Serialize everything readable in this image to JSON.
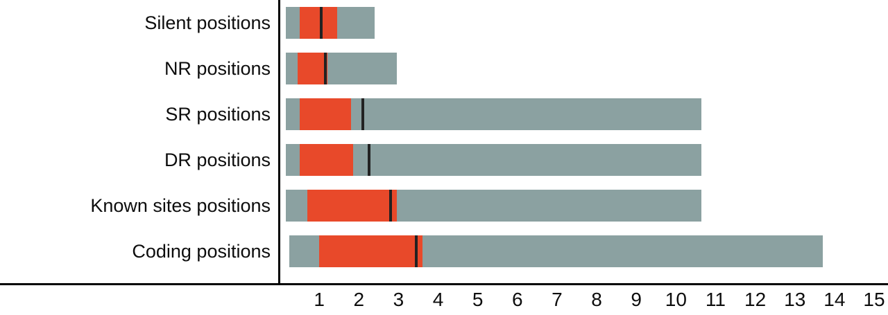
{
  "chart_data": {
    "type": "bar",
    "variant": "horizontal-range-boxplot",
    "title": "",
    "xlabel": "",
    "ylabel": "",
    "xlim": [
      0,
      15
    ],
    "x_ticks": [
      1,
      2,
      3,
      4,
      5,
      6,
      7,
      8,
      9,
      10,
      11,
      12,
      13,
      14,
      15
    ],
    "legend": "none",
    "grid": false,
    "colors": {
      "range": "#8ba1a1",
      "box": "#e8492a",
      "marker": "#222222",
      "axis": "#000000",
      "text": "#0d0d0d"
    },
    "categories": [
      "Silent positions",
      "NR positions",
      "SR positions",
      "DR positions",
      "Known sites positions",
      "Coding positions"
    ],
    "rows": [
      {
        "label": "Silent positions",
        "range": [
          0.15,
          2.4
        ],
        "box": [
          0.5,
          1.45
        ],
        "marker": 1.05
      },
      {
        "label": "NR positions",
        "range": [
          0.15,
          2.95
        ],
        "box": [
          0.45,
          1.2
        ],
        "marker": 1.15
      },
      {
        "label": "SR positions",
        "range": [
          0.15,
          10.65
        ],
        "box": [
          0.5,
          1.8
        ],
        "marker": 2.1
      },
      {
        "label": "DR positions",
        "range": [
          0.15,
          10.65
        ],
        "box": [
          0.5,
          1.85
        ],
        "marker": 2.25
      },
      {
        "label": "Known sites positions",
        "range": [
          0.15,
          10.65
        ],
        "box": [
          0.7,
          2.95
        ],
        "marker": 2.8
      },
      {
        "label": "Coding positions",
        "range": [
          0.25,
          13.7
        ],
        "box": [
          1.0,
          3.6
        ],
        "marker": 3.45
      }
    ]
  }
}
